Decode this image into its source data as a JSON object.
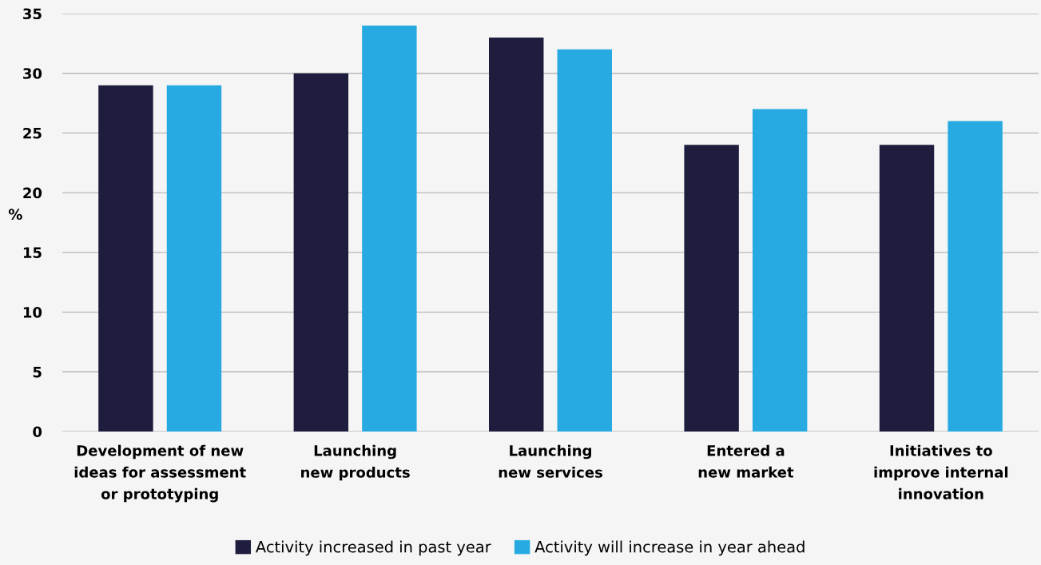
{
  "chart_data": {
    "type": "bar",
    "ylabel": "%",
    "categories": [
      "Development of new\nideas for assessment\nor prototyping",
      "Launching\nnew products",
      "Launching\nnew services",
      "Entered a\nnew market",
      "Initiatives to\nimprove internal\ninnovation"
    ],
    "series": [
      {
        "name": "Activity increased in past year",
        "color": "#1f1d3d",
        "values": [
          29,
          30,
          33,
          24,
          24
        ]
      },
      {
        "name": "Activity will increase in year ahead",
        "color": "#27aae1",
        "values": [
          29,
          34,
          32,
          27,
          26
        ]
      }
    ],
    "ylim": [
      0,
      35
    ],
    "yticks": [
      0,
      5,
      10,
      15,
      20,
      25,
      30,
      35
    ],
    "grid": "y",
    "legend": "bottom"
  }
}
